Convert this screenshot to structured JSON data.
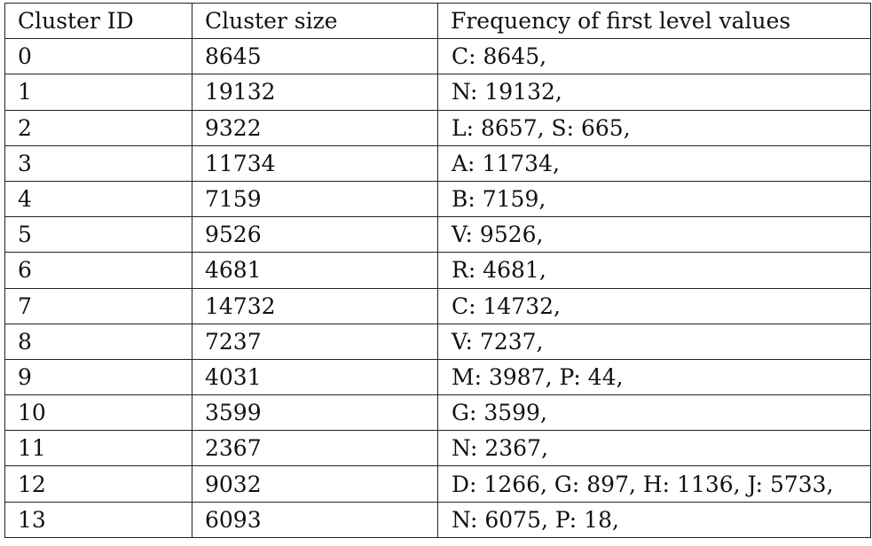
{
  "table": {
    "headers": [
      "Cluster ID",
      "Cluster size",
      "Frequency of first level values"
    ],
    "rows": [
      [
        "0",
        "8645",
        "C: 8645,"
      ],
      [
        "1",
        "19132",
        "N: 19132,"
      ],
      [
        "2",
        "9322",
        "L: 8657, S: 665,"
      ],
      [
        "3",
        "11734",
        "A: 11734,"
      ],
      [
        "4",
        "7159",
        "B: 7159,"
      ],
      [
        "5",
        "9526",
        "V: 9526,"
      ],
      [
        "6",
        "4681",
        "R: 4681,"
      ],
      [
        "7",
        "14732",
        "C: 14732,"
      ],
      [
        "8",
        "7237",
        "V: 7237,"
      ],
      [
        "9",
        "4031",
        "M: 3987, P: 44,"
      ],
      [
        "10",
        "3599",
        "G: 3599,"
      ],
      [
        "11",
        "2367",
        "N: 2367,"
      ],
      [
        "12",
        "9032",
        "D: 1266, G: 897, H: 1136, J: 5733,"
      ],
      [
        "13",
        "6093",
        "N: 6075, P: 18,"
      ]
    ]
  }
}
